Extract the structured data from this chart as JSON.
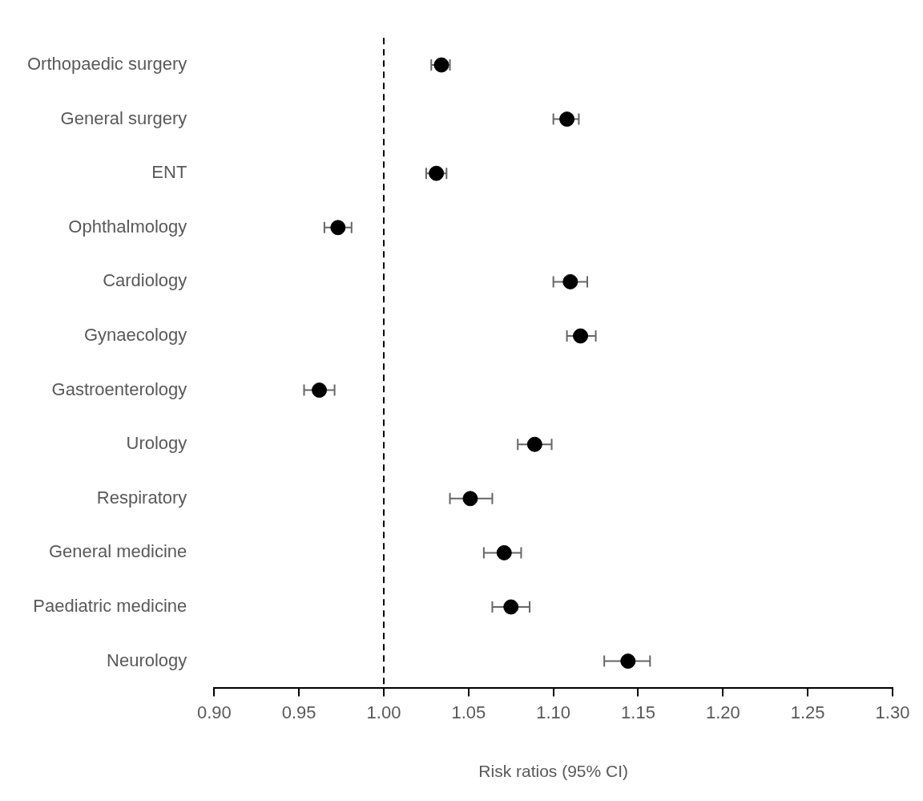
{
  "chart_data": {
    "type": "scatter",
    "orientation": "horizontal",
    "xlabel": "Risk ratios (95% CI)",
    "categories": [
      "Orthopaedic surgery",
      "General surgery",
      "ENT",
      "Ophthalmology",
      "Cardiology",
      "Gynaecology",
      "Gastroenterology",
      "Urology",
      "Respiratory",
      "General medicine",
      "Paediatric medicine",
      "Neurology"
    ],
    "values": [
      1.034,
      1.108,
      1.031,
      0.973,
      1.11,
      1.116,
      0.962,
      1.089,
      1.051,
      1.071,
      1.075,
      1.144
    ],
    "errors": [
      [
        1.028,
        1.039
      ],
      [
        1.1,
        1.115
      ],
      [
        1.025,
        1.037
      ],
      [
        0.965,
        0.981
      ],
      [
        1.1,
        1.12
      ],
      [
        1.108,
        1.125
      ],
      [
        0.953,
        0.971
      ],
      [
        1.079,
        1.099
      ],
      [
        1.039,
        1.064
      ],
      [
        1.059,
        1.081
      ],
      [
        1.064,
        1.086
      ],
      [
        1.13,
        1.157
      ]
    ],
    "color": "#000000",
    "marker": "circle",
    "xlim": [
      0.9,
      1.3
    ],
    "xticks": [
      {
        "value": 0.9,
        "label": "0.90"
      },
      {
        "value": 0.95,
        "label": "0.95"
      },
      {
        "value": 1.0,
        "label": "1.00"
      },
      {
        "value": 1.05,
        "label": "1.05"
      },
      {
        "value": 1.1,
        "label": "1.10"
      },
      {
        "value": 1.15,
        "label": "1.15"
      },
      {
        "value": 1.2,
        "label": "1.20"
      },
      {
        "value": 1.25,
        "label": "1.25"
      },
      {
        "value": 1.3,
        "label": "1.30"
      }
    ],
    "ref_lines": [
      {
        "axis": "x",
        "value": 1.0,
        "line_style": "dashed",
        "color": "#000000"
      }
    ]
  }
}
